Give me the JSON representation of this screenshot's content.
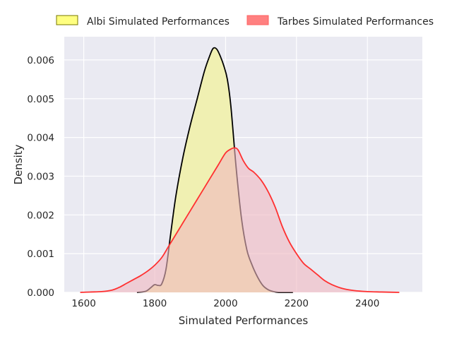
{
  "chart_data": {
    "type": "area",
    "xlabel": "Simulated Performances",
    "ylabel": "Density",
    "xlim": [
      1545,
      2555
    ],
    "ylim": [
      0,
      0.0066
    ],
    "x_ticks": [
      1600,
      1800,
      2000,
      2200,
      2400
    ],
    "y_ticks": [
      0,
      0.001,
      0.002,
      0.003,
      0.004,
      0.005,
      0.006
    ],
    "y_tick_labels": [
      "0.000",
      "0.001",
      "0.002",
      "0.003",
      "0.004",
      "0.005",
      "0.006"
    ],
    "grid": true,
    "legend_position": "top, outside plot",
    "series": [
      {
        "name": "Albi Simulated Performances",
        "fill_color": "#f0f0b2",
        "line_color": "#000000",
        "legend_color": "#ffff80",
        "x": [
          1750,
          1775,
          1790,
          1800,
          1810,
          1820,
          1832,
          1845,
          1860,
          1880,
          1900,
          1920,
          1940,
          1955,
          1965,
          1975,
          1985,
          1995,
          2005,
          2015,
          2030,
          2045,
          2060,
          2075,
          2090,
          2105,
          2120,
          2135,
          2150,
          2170,
          2190
        ],
        "y": [
          0,
          3e-05,
          0.00013,
          0.0002,
          0.00018,
          0.00022,
          0.0006,
          0.0015,
          0.0025,
          0.0035,
          0.0043,
          0.005,
          0.0057,
          0.0061,
          0.0063,
          0.00628,
          0.0061,
          0.00585,
          0.0055,
          0.0048,
          0.0032,
          0.0019,
          0.0011,
          0.0007,
          0.0004,
          0.00018,
          7e-05,
          2e-05,
          0,
          0,
          0
        ]
      },
      {
        "name": "Tarbes Simulated Performances",
        "fill_color": "#f0b8c0",
        "line_color": "#ff3030",
        "legend_color": "#ff8080",
        "x": [
          1590,
          1620,
          1650,
          1680,
          1700,
          1720,
          1740,
          1760,
          1780,
          1800,
          1820,
          1840,
          1860,
          1880,
          1900,
          1920,
          1940,
          1960,
          1980,
          2000,
          2015,
          2025,
          2035,
          2050,
          2065,
          2080,
          2100,
          2120,
          2140,
          2160,
          2180,
          2200,
          2220,
          2240,
          2260,
          2280,
          2300,
          2330,
          2360,
          2400,
          2440,
          2490
        ],
        "y": [
          0,
          1e-05,
          2e-05,
          6e-05,
          0.00013,
          0.00023,
          0.00033,
          0.00043,
          0.00055,
          0.0007,
          0.0009,
          0.0012,
          0.0015,
          0.0018,
          0.0021,
          0.0024,
          0.0027,
          0.003,
          0.0033,
          0.0036,
          0.0037,
          0.00373,
          0.00368,
          0.0034,
          0.0032,
          0.0031,
          0.0029,
          0.0026,
          0.0022,
          0.0017,
          0.0013,
          0.001,
          0.00075,
          0.0006,
          0.00045,
          0.0003,
          0.0002,
          0.0001,
          5e-05,
          2e-05,
          1e-05,
          0
        ]
      }
    ]
  }
}
